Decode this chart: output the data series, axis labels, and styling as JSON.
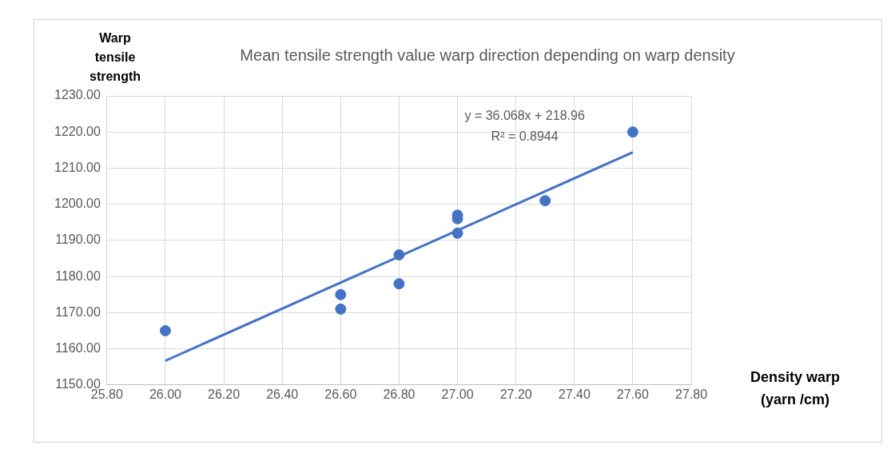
{
  "chart_data": {
    "type": "scatter",
    "title": "Mean tensile strength value warp direction depending on warp density",
    "xlabel": "Density warp (yarn /cm)",
    "ylabel": "Warp tensile strength",
    "series": [
      {
        "type": "scatter",
        "color": "#4472c4",
        "marker": "circle",
        "x": [
          26.0,
          26.6,
          26.6,
          26.8,
          26.8,
          27.0,
          27.0,
          27.0,
          27.3,
          27.6
        ],
        "values": [
          1165,
          1175,
          1171,
          1186,
          1178,
          1197,
          1196,
          1192,
          1201,
          1220
        ]
      },
      {
        "type": "line",
        "color": "#4472c4",
        "marker": "none",
        "line_style": "solid",
        "x": [
          26.0,
          27.6
        ],
        "values": [
          1156.7,
          1214.4
        ]
      }
    ],
    "annotations": [
      "y = 36.068x + 218.96",
      "R² = 0.8944"
    ],
    "xlim": [
      25.8,
      27.8
    ],
    "xticks": [
      {
        "value": 25.8,
        "label": "25.80"
      },
      {
        "value": 26.0,
        "label": "26.00"
      },
      {
        "value": 26.2,
        "label": "26.20"
      },
      {
        "value": 26.4,
        "label": "26.40"
      },
      {
        "value": 26.6,
        "label": "26.60"
      },
      {
        "value": 26.8,
        "label": "26.80"
      },
      {
        "value": 27.0,
        "label": "27.00"
      },
      {
        "value": 27.2,
        "label": "27.20"
      },
      {
        "value": 27.4,
        "label": "27.40"
      },
      {
        "value": 27.6,
        "label": "27.60"
      },
      {
        "value": 27.8,
        "label": "27.80"
      }
    ],
    "ylim": [
      1150,
      1230
    ],
    "yticks": [
      {
        "value": 1150,
        "label": "1150.00"
      },
      {
        "value": 1160,
        "label": "1160.00"
      },
      {
        "value": 1170,
        "label": "1170.00"
      },
      {
        "value": 1180,
        "label": "1180.00"
      },
      {
        "value": 1190,
        "label": "1190.00"
      },
      {
        "value": 1200,
        "label": "1200.00"
      },
      {
        "value": 1210,
        "label": "1210.00"
      },
      {
        "value": 1220,
        "label": "1220.00"
      },
      {
        "value": 1230,
        "label": "1230.00"
      }
    ],
    "grid": true,
    "legend": false
  }
}
